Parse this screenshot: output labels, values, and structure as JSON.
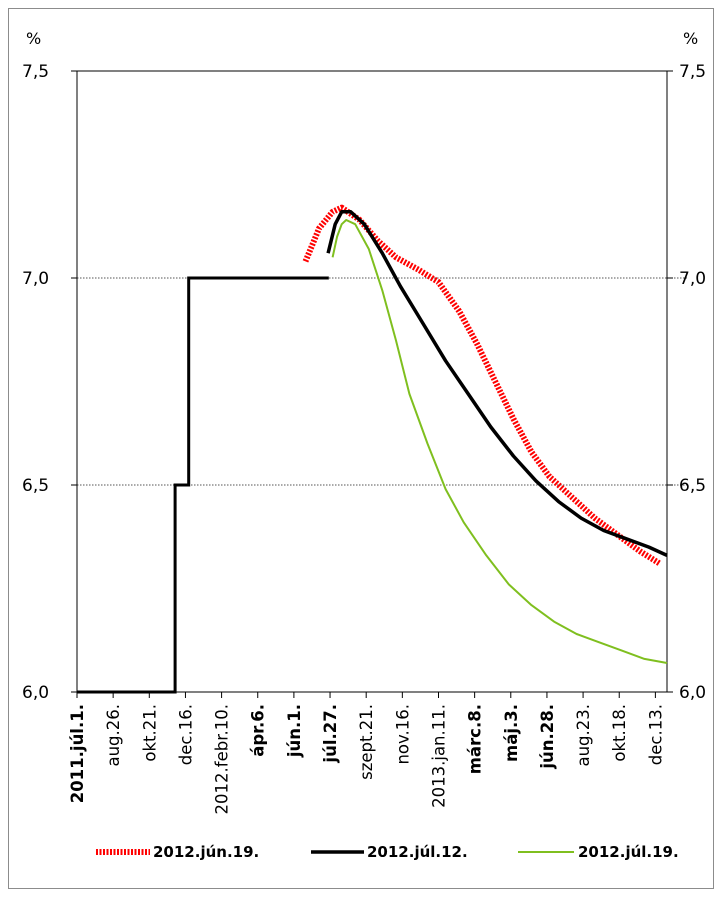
{
  "chart_data": {
    "type": "line",
    "y_unit_left": "%",
    "y_unit_right": "%",
    "ylim": [
      6.0,
      7.5
    ],
    "y_ticks": [
      "6,0",
      "6,5",
      "7,0",
      "7,5"
    ],
    "y_tick_values": [
      6.0,
      6.5,
      7.0,
      7.5
    ],
    "grid": "horizontal dotted at 6,5 and 7,0",
    "x_range": [
      "2011-07-01",
      "2013-12-31"
    ],
    "x_ticks": [
      {
        "label": "2011.júl.1.",
        "date": "2011-07-01",
        "bold": true
      },
      {
        "label": "aug.26.",
        "date": "2011-08-26",
        "bold": false
      },
      {
        "label": "okt.21.",
        "date": "2011-10-21",
        "bold": false
      },
      {
        "label": "dec.16.",
        "date": "2011-12-16",
        "bold": false
      },
      {
        "label": "2012.febr.10.",
        "date": "2012-02-10",
        "bold": false
      },
      {
        "label": "ápr.6.",
        "date": "2012-04-06",
        "bold": true
      },
      {
        "label": "jún.1.",
        "date": "2012-06-01",
        "bold": true
      },
      {
        "label": "júl.27.",
        "date": "2012-07-27",
        "bold": true
      },
      {
        "label": "szept.21.",
        "date": "2012-09-21",
        "bold": false
      },
      {
        "label": "nov.16.",
        "date": "2012-11-16",
        "bold": false
      },
      {
        "label": "2013.jan.11.",
        "date": "2013-01-11",
        "bold": false
      },
      {
        "label": "márc.8.",
        "date": "2013-03-08",
        "bold": true
      },
      {
        "label": "máj.3.",
        "date": "2013-05-03",
        "bold": true
      },
      {
        "label": "jún.28.",
        "date": "2013-06-28",
        "bold": true
      },
      {
        "label": "aug.23.",
        "date": "2013-08-23",
        "bold": false
      },
      {
        "label": "okt.18.",
        "date": "2013-10-18",
        "bold": false
      },
      {
        "label": "dec.13.",
        "date": "2013-12-13",
        "bold": false
      }
    ],
    "series": [
      {
        "name": "",
        "color": "#000000",
        "style": "step",
        "points": [
          [
            "2011-07-01",
            6.0
          ],
          [
            "2011-11-30",
            6.0
          ],
          [
            "2011-11-30",
            6.5
          ],
          [
            "2011-12-21",
            6.5
          ],
          [
            "2011-12-21",
            7.0
          ],
          [
            "2012-07-25",
            7.0
          ]
        ]
      },
      {
        "name": "2012.jún.19.",
        "color": "#ff0000",
        "style": "dotted-thick",
        "points": [
          [
            "2012-06-19",
            7.04
          ],
          [
            "2012-07-10",
            7.12
          ],
          [
            "2012-07-31",
            7.16
          ],
          [
            "2012-08-14",
            7.17
          ],
          [
            "2012-09-11",
            7.14
          ],
          [
            "2012-10-09",
            7.09
          ],
          [
            "2012-11-06",
            7.05
          ],
          [
            "2012-12-11",
            7.02
          ],
          [
            "2013-01-11",
            6.99
          ],
          [
            "2013-02-12",
            6.92
          ],
          [
            "2013-03-12",
            6.84
          ],
          [
            "2013-04-09",
            6.75
          ],
          [
            "2013-05-07",
            6.66
          ],
          [
            "2013-06-04",
            6.58
          ],
          [
            "2013-07-02",
            6.52
          ],
          [
            "2013-08-06",
            6.47
          ],
          [
            "2013-09-10",
            6.42
          ],
          [
            "2013-10-15",
            6.38
          ],
          [
            "2013-11-19",
            6.34
          ],
          [
            "2013-12-20",
            6.31
          ]
        ]
      },
      {
        "name": "2012.júl.12.",
        "color": "#000000",
        "style": "solid-thick",
        "points": [
          [
            "2012-07-24",
            7.06
          ],
          [
            "2012-08-04",
            7.13
          ],
          [
            "2012-08-14",
            7.16
          ],
          [
            "2012-08-28",
            7.16
          ],
          [
            "2012-09-18",
            7.13
          ],
          [
            "2012-10-16",
            7.06
          ],
          [
            "2012-11-13",
            6.98
          ],
          [
            "2012-12-18",
            6.89
          ],
          [
            "2013-01-22",
            6.8
          ],
          [
            "2013-02-26",
            6.72
          ],
          [
            "2013-04-02",
            6.64
          ],
          [
            "2013-05-07",
            6.57
          ],
          [
            "2013-06-11",
            6.51
          ],
          [
            "2013-07-16",
            6.46
          ],
          [
            "2013-08-20",
            6.42
          ],
          [
            "2013-09-24",
            6.39
          ],
          [
            "2013-10-29",
            6.37
          ],
          [
            "2013-12-03",
            6.35
          ],
          [
            "2013-12-31",
            6.33
          ]
        ]
      },
      {
        "name": "2012.júl.19.",
        "color": "#7fbf1f",
        "style": "solid-thin",
        "points": [
          [
            "2012-07-31",
            7.05
          ],
          [
            "2012-08-07",
            7.1
          ],
          [
            "2012-08-14",
            7.13
          ],
          [
            "2012-08-21",
            7.14
          ],
          [
            "2012-09-04",
            7.13
          ],
          [
            "2012-09-25",
            7.07
          ],
          [
            "2012-10-16",
            6.97
          ],
          [
            "2012-11-06",
            6.85
          ],
          [
            "2012-11-27",
            6.72
          ],
          [
            "2012-12-25",
            6.6
          ],
          [
            "2013-01-22",
            6.49
          ],
          [
            "2013-02-19",
            6.41
          ],
          [
            "2013-03-26",
            6.33
          ],
          [
            "2013-04-30",
            6.26
          ],
          [
            "2013-06-04",
            6.21
          ],
          [
            "2013-07-09",
            6.17
          ],
          [
            "2013-08-13",
            6.14
          ],
          [
            "2013-09-17",
            6.12
          ],
          [
            "2013-10-22",
            6.1
          ],
          [
            "2013-11-26",
            6.08
          ],
          [
            "2013-12-31",
            6.07
          ]
        ]
      }
    ],
    "legend": {
      "position": "bottom",
      "items": [
        "2012.jún.19.",
        "2012.júl.12.",
        "2012.júl.19."
      ]
    }
  }
}
